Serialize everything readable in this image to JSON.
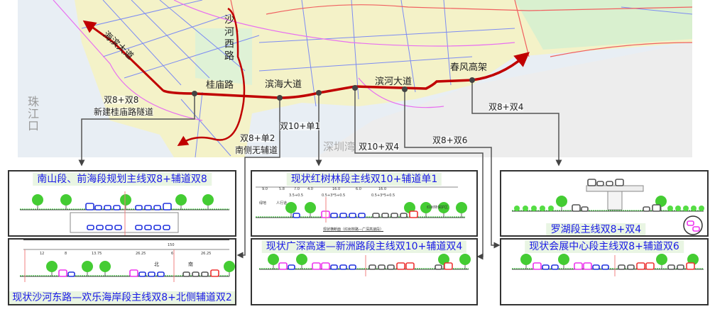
{
  "map": {
    "roads": {
      "binhai_west": "海滨大道",
      "shahe_west": "沙河西路",
      "guimiao": "桂庙路",
      "binhai_ave": "滨海大道",
      "binhe_ave": "滨河大道",
      "chunfeng": "春风高架"
    },
    "water": {
      "pearl_river_estuary": "珠江口",
      "shenzhen_bay": "深圳湾"
    },
    "annotations": {
      "a1_line1": "双8+双8",
      "a1_line2": "新建桂庙路隧道",
      "a2": "双10+单1",
      "a3_line1": "双8+单2",
      "a3_line2": "南侧无辅道",
      "a4": "双10+双4",
      "a5": "双8+双6",
      "a6": "双8+双4"
    },
    "colors": {
      "route": "#c00000",
      "connector": "#555555"
    }
  },
  "panels": {
    "nanshan": {
      "title": "南山段、前海段规划主线双8+辅道双8"
    },
    "shahe_east": {
      "title": "现状沙河东路—欢乐海岸段主线双8+北侧辅道双2",
      "dims": [
        "12",
        "8",
        "13.75",
        "26.25",
        "6",
        "26.25"
      ],
      "total": "150",
      "north": "北",
      "south": "南"
    },
    "hongshulin": {
      "title": "现状红树林段主线双10+辅道单1",
      "dims": [
        "9.0",
        "5.8",
        "7.0",
        "4.0",
        "16.0",
        "6.0",
        "16.0"
      ],
      "sub_dims": [
        "3.5+0.5",
        "0.5+3*5+0.5",
        "0.5+3*5+0.5"
      ],
      "labels": {
        "green": "绿地",
        "sidewalk": "人行道",
        "reserve": "红树林保护区"
      },
      "caption": "现状横断面（红树林路—广深高速段）"
    },
    "guangshen": {
      "title": "现状广深高速—新洲路段主线双10+辅道双4"
    },
    "luohu": {
      "title": "罗湖段主线双8+双4"
    },
    "huizhan": {
      "title": "现状会展中心段主线双8+辅道双6"
    }
  },
  "colors": {
    "panel_title": "#1a1ae6",
    "panel_title_bg": "#e9f5e3"
  }
}
